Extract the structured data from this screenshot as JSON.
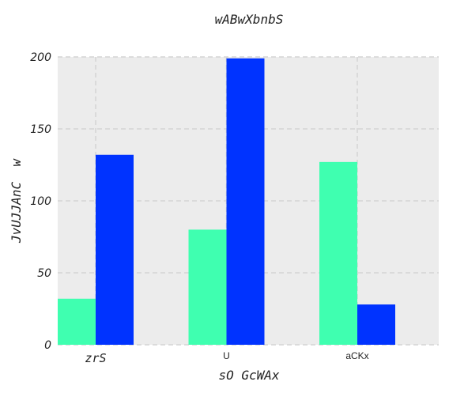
{
  "chart_data": {
    "type": "bar",
    "title": "wABwXbnbS",
    "xlabel": "sO GcWAx",
    "ylabel": "JvUJJAnC  w",
    "categories": [
      "zrS",
      "U",
      "aCKx"
    ],
    "series": [
      {
        "values": [
          32,
          80,
          127
        ],
        "color": "#3fffb0"
      },
      {
        "values": [
          132,
          199,
          28
        ],
        "color": "#0033ff"
      }
    ],
    "ylim": [
      0,
      200
    ],
    "yticks": [
      0,
      50,
      100,
      150,
      200
    ],
    "grid": true,
    "background": "#ececec"
  }
}
